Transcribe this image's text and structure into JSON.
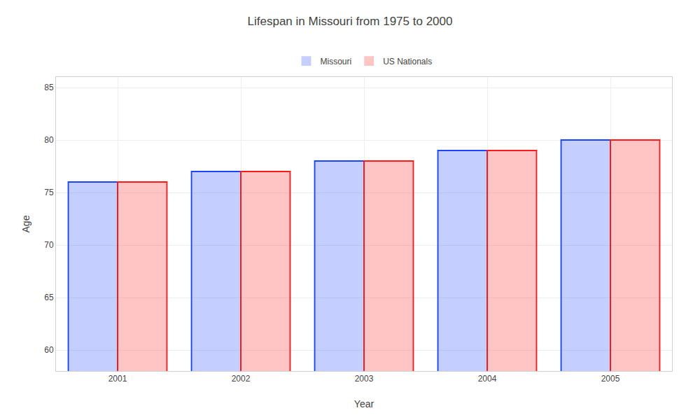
{
  "chart_data": {
    "type": "bar",
    "title": "Lifespan in Missouri from 1975 to 2000",
    "xlabel": "Year",
    "ylabel": "Age",
    "categories": [
      "2001",
      "2002",
      "2003",
      "2004",
      "2005"
    ],
    "series": [
      {
        "name": "Missouri",
        "color": "#1a44ff",
        "values": [
          76,
          77,
          78,
          79,
          80
        ]
      },
      {
        "name": "US Nationals",
        "color": "#ff1a1a",
        "values": [
          76,
          77,
          78,
          79,
          80
        ]
      }
    ],
    "ylim": [
      58,
      86
    ],
    "yticks": [
      60,
      65,
      70,
      75,
      80,
      85
    ],
    "grid": true,
    "legend": "top"
  }
}
